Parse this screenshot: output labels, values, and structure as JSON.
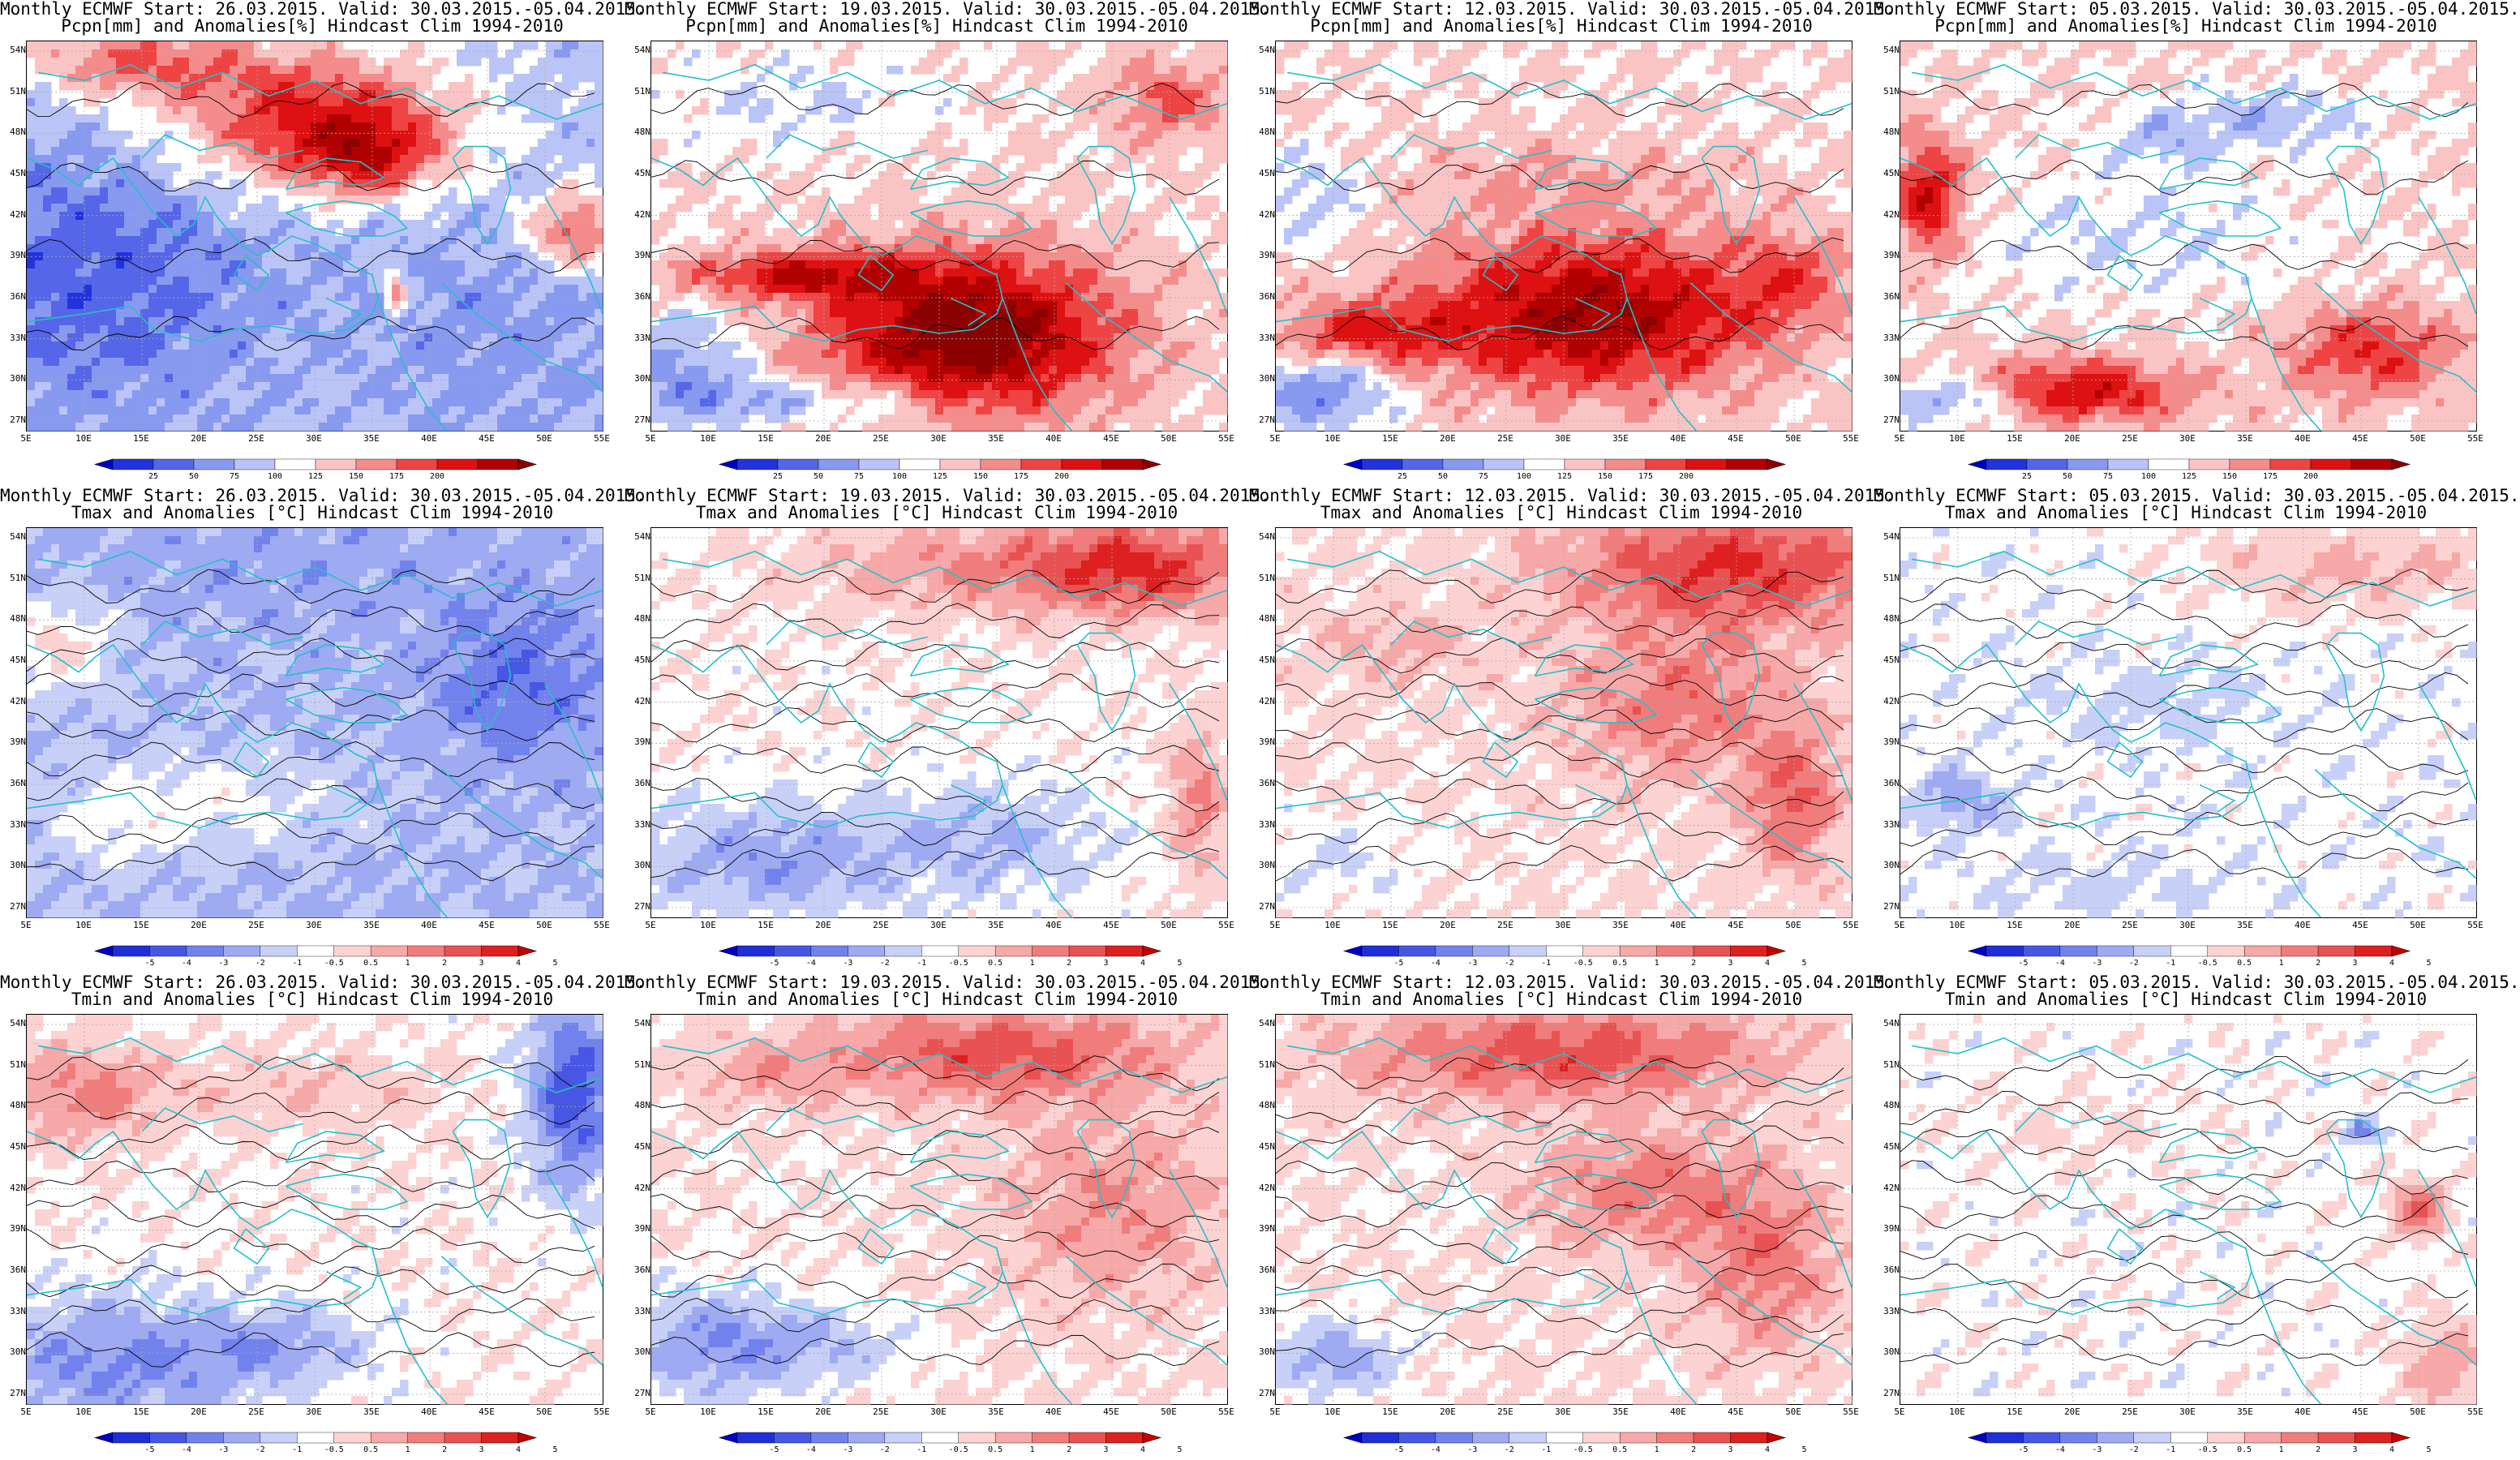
{
  "columns": [
    {
      "start_title": "Monthly ECMWF Start: 26.03.2015. Valid: 30.03.2015.-05.04.2015."
    },
    {
      "start_title": "Monthly ECMWF Start: 19.03.2015. Valid: 30.03.2015.-05.04.2015."
    },
    {
      "start_title": "Monthly ECMWF Start: 12.03.2015. Valid: 30.03.2015.-05.04.2015."
    },
    {
      "start_title": "Monthly ECMWF Start: 05.03.2015. Valid: 30.03.2015.-05.04.2015."
    }
  ],
  "rows": [
    {
      "variable": "precipitation",
      "subtitle": "Pcpn[mm] and Anomalies[%] Hindcast Clim 1994-2010",
      "colorbar": {
        "colors": [
          "#0000c8",
          "#2233dd",
          "#5566e8",
          "#8899f0",
          "#bbc4f6",
          "#ffffff",
          "#fbc4c4",
          "#f58c8c",
          "#ee4444",
          "#dd1111",
          "#b00000",
          "#8b0000"
        ],
        "labels": [
          "25",
          "50",
          "75",
          "100",
          "125",
          "150",
          "175",
          "200"
        ]
      }
    },
    {
      "variable": "tmax",
      "subtitle": "Tmax and Anomalies [°C] Hindcast Clim 1994-2010",
      "colorbar": {
        "colors": [
          "#0000c8",
          "#1f2fd8",
          "#4757e4",
          "#7282ec",
          "#9eaaf2",
          "#c8d0f8",
          "#ffffff",
          "#fcd2d2",
          "#f7a8a8",
          "#f07c7c",
          "#e85252",
          "#dd2020",
          "#c80000"
        ],
        "labels": [
          "-5",
          "-4",
          "-3",
          "-2",
          "-1",
          "-0.5",
          "0.5",
          "1",
          "2",
          "3",
          "4",
          "5"
        ]
      }
    },
    {
      "variable": "tmin",
      "subtitle": "Tmin and Anomalies [°C] Hindcast Clim 1994-2010",
      "colorbar": {
        "colors": [
          "#0000c8",
          "#1f2fd8",
          "#4757e4",
          "#7282ec",
          "#9eaaf2",
          "#c8d0f8",
          "#ffffff",
          "#fcd2d2",
          "#f7a8a8",
          "#f07c7c",
          "#e85252",
          "#dd2020",
          "#c80000"
        ],
        "labels": [
          "-5",
          "-4",
          "-3",
          "-2",
          "-1",
          "-0.5",
          "0.5",
          "1",
          "2",
          "3",
          "4",
          "5"
        ]
      }
    }
  ],
  "axes": {
    "lon_labels": [
      "5E",
      "10E",
      "15E",
      "20E",
      "25E",
      "30E",
      "35E",
      "40E",
      "45E",
      "50E",
      "55E"
    ],
    "lat_labels": [
      "54N",
      "51N",
      "48N",
      "45N",
      "42N",
      "39N",
      "36N",
      "33N",
      "30N",
      "27N"
    ]
  },
  "colors": {
    "coastline": "#25c0c8",
    "contour": "#000000",
    "grid": "#aaaaaa"
  },
  "map_fields": [
    [
      {
        "base": -1.6,
        "blobs": [
          [
            0.5,
            0.2,
            0.25,
            0.18,
            5.0
          ],
          [
            0.6,
            0.3,
            0.12,
            0.1,
            3.0
          ],
          [
            0.18,
            0.05,
            0.2,
            0.1,
            3.5
          ],
          [
            0.95,
            0.48,
            0.08,
            0.1,
            4.0
          ],
          [
            0.64,
            0.65,
            0.02,
            0.05,
            4.0
          ],
          [
            0.1,
            0.6,
            0.3,
            0.35,
            -2.0
          ],
          [
            0.8,
            0.75,
            0.25,
            0.3,
            -0.8
          ]
        ]
      },
      {
        "base": 0.0,
        "blobs": [
          [
            0.55,
            0.75,
            0.25,
            0.2,
            6.0
          ],
          [
            0.25,
            0.6,
            0.2,
            0.06,
            3.5
          ],
          [
            0.05,
            0.85,
            0.12,
            0.15,
            -2.5
          ],
          [
            0.2,
            0.92,
            0.12,
            0.06,
            -2.0
          ],
          [
            0.4,
            0.93,
            0.12,
            0.06,
            -1.8
          ],
          [
            0.9,
            0.15,
            0.1,
            0.1,
            2.2
          ],
          [
            0.25,
            0.15,
            0.25,
            0.12,
            -1.0
          ]
        ]
      },
      {
        "base": 0.0,
        "blobs": [
          [
            0.55,
            0.7,
            0.3,
            0.2,
            5.0
          ],
          [
            0.15,
            0.75,
            0.15,
            0.08,
            3.0
          ],
          [
            0.08,
            0.9,
            0.12,
            0.1,
            -3.0
          ],
          [
            0.06,
            0.4,
            0.1,
            0.12,
            -1.5
          ],
          [
            0.5,
            0.35,
            0.3,
            0.1,
            1.0
          ],
          [
            0.9,
            0.6,
            0.1,
            0.12,
            1.8
          ]
        ]
      },
      {
        "base": 0.0,
        "blobs": [
          [
            0.05,
            0.4,
            0.06,
            0.15,
            4.0
          ],
          [
            0.3,
            0.9,
            0.2,
            0.08,
            4.0
          ],
          [
            0.1,
            0.92,
            0.12,
            0.06,
            -3.0
          ],
          [
            0.82,
            0.8,
            0.15,
            0.12,
            3.0
          ],
          [
            0.4,
            0.5,
            0.3,
            0.15,
            -1.0
          ],
          [
            0.65,
            0.2,
            0.15,
            0.08,
            -1.8
          ],
          [
            0.45,
            0.25,
            0.1,
            0.08,
            -1.5
          ]
        ]
      }
    ],
    [
      {
        "base": -1.6,
        "blobs": [
          [
            0.05,
            0.3,
            0.1,
            0.12,
            2.5
          ],
          [
            0.3,
            0.7,
            0.25,
            0.12,
            1.6
          ],
          [
            0.15,
            0.8,
            0.1,
            0.1,
            1.0
          ],
          [
            0.85,
            0.4,
            0.15,
            0.2,
            -1.8
          ],
          [
            0.5,
            0.1,
            0.4,
            0.15,
            -0.5
          ]
        ]
      },
      {
        "base": 0.3,
        "blobs": [
          [
            0.85,
            0.1,
            0.2,
            0.12,
            4.0
          ],
          [
            0.55,
            0.1,
            0.3,
            0.12,
            2.0
          ],
          [
            0.2,
            0.85,
            0.25,
            0.15,
            -2.5
          ],
          [
            0.6,
            0.8,
            0.2,
            0.15,
            -1.8
          ],
          [
            0.95,
            0.7,
            0.05,
            0.2,
            2.5
          ]
        ]
      },
      {
        "base": 0.6,
        "blobs": [
          [
            0.8,
            0.1,
            0.3,
            0.15,
            4.0
          ],
          [
            0.7,
            0.45,
            0.2,
            0.2,
            2.5
          ],
          [
            0.9,
            0.7,
            0.08,
            0.18,
            3.0
          ],
          [
            0.1,
            0.85,
            0.15,
            0.12,
            -1.2
          ],
          [
            0.2,
            0.3,
            0.15,
            0.1,
            1.2
          ]
        ]
      },
      {
        "base": -0.1,
        "blobs": [
          [
            0.8,
            0.1,
            0.3,
            0.12,
            1.8
          ],
          [
            0.1,
            0.7,
            0.08,
            0.08,
            -2.0
          ],
          [
            0.45,
            0.45,
            0.2,
            0.1,
            -0.8
          ],
          [
            0.35,
            0.92,
            0.2,
            0.08,
            -0.7
          ]
        ]
      }
    ],
    [
      {
        "base": 0.3,
        "blobs": [
          [
            0.1,
            0.2,
            0.15,
            0.12,
            2.5
          ],
          [
            0.95,
            0.2,
            0.08,
            0.25,
            -4.5
          ],
          [
            0.15,
            0.9,
            0.25,
            0.18,
            -3.0
          ],
          [
            0.45,
            0.85,
            0.15,
            0.1,
            -2.0
          ],
          [
            0.5,
            0.2,
            0.2,
            0.1,
            1.2
          ]
        ]
      },
      {
        "base": 0.5,
        "blobs": [
          [
            0.6,
            0.1,
            0.3,
            0.12,
            3.5
          ],
          [
            0.8,
            0.5,
            0.2,
            0.25,
            2.0
          ],
          [
            0.1,
            0.85,
            0.15,
            0.15,
            -2.8
          ],
          [
            0.3,
            0.85,
            0.15,
            0.1,
            -1.8
          ],
          [
            0.2,
            0.15,
            0.12,
            0.08,
            1.5
          ]
        ]
      },
      {
        "base": 0.6,
        "blobs": [
          [
            0.5,
            0.1,
            0.35,
            0.12,
            3.5
          ],
          [
            0.65,
            0.45,
            0.2,
            0.15,
            2.5
          ],
          [
            0.85,
            0.65,
            0.12,
            0.2,
            2.5
          ],
          [
            0.1,
            0.88,
            0.12,
            0.1,
            -2.8
          ],
          [
            0.3,
            0.5,
            0.12,
            0.08,
            -0.4
          ]
        ]
      },
      {
        "base": 0.1,
        "blobs": [
          [
            0.95,
            0.9,
            0.08,
            0.12,
            2.0
          ],
          [
            0.9,
            0.5,
            0.05,
            0.08,
            3.0
          ],
          [
            0.8,
            0.3,
            0.03,
            0.03,
            -3.0
          ],
          [
            0.3,
            0.3,
            0.2,
            0.1,
            0.6
          ]
        ]
      }
    ]
  ]
}
